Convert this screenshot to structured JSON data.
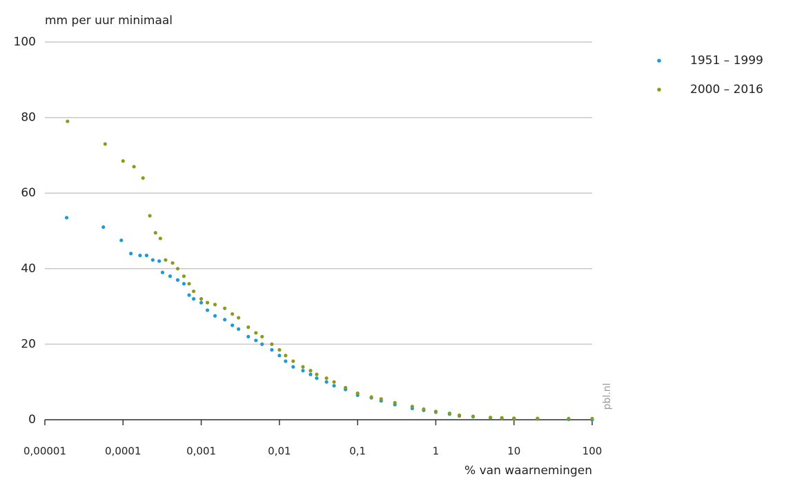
{
  "chart_data": {
    "type": "scatter",
    "y_label": "mm per uur minimaal",
    "x_label": "% van waarnemingen",
    "watermark": "pbl.nl",
    "log_x": true,
    "grid": true,
    "legend": "top-right",
    "xlim": [
      1e-05,
      100
    ],
    "ylim": [
      0,
      100
    ],
    "xticks": [
      {
        "value": 1e-05,
        "label": "0,00001"
      },
      {
        "value": 0.0001,
        "label": "0,0001"
      },
      {
        "value": 0.001,
        "label": "0,001"
      },
      {
        "value": 0.01,
        "label": "0,01"
      },
      {
        "value": 0.1,
        "label": "0,1"
      },
      1,
      10,
      100
    ],
    "yticks": [
      0,
      20,
      40,
      60,
      80,
      100
    ],
    "series": [
      {
        "name": "1951 – 1999",
        "color": "#1a9ad6",
        "x": [
          1.9e-05,
          5.6e-05,
          9.5e-05,
          0.000126,
          0.000165,
          0.0002,
          0.00024,
          0.00029,
          0.00032,
          0.0004,
          0.0005,
          0.0006,
          0.0007,
          0.0008,
          0.001,
          0.0012,
          0.0015,
          0.002,
          0.0025,
          0.003,
          0.004,
          0.005,
          0.006,
          0.008,
          0.01,
          0.012,
          0.015,
          0.02,
          0.025,
          0.03,
          0.04,
          0.05,
          0.07,
          0.1,
          0.15,
          0.2,
          0.3,
          0.5,
          0.7,
          1,
          1.5,
          2,
          3,
          5,
          7,
          10,
          20,
          50,
          100
        ],
        "values": [
          53.5,
          51,
          47.5,
          44,
          43.5,
          43.5,
          42.3,
          42,
          39,
          38,
          37,
          36,
          33,
          32,
          31,
          29,
          27.5,
          26.5,
          25,
          24,
          22,
          21,
          20,
          18.5,
          17,
          15.5,
          14,
          13,
          12,
          11,
          10,
          9,
          8,
          6.5,
          5.8,
          5,
          4,
          3,
          2.5,
          2,
          1.5,
          1,
          0.8,
          0.5,
          0.4,
          0.3,
          0.2,
          0.1,
          0
        ]
      },
      {
        "name": "2000 – 2016",
        "color": "#8c9a1a",
        "x": [
          1.95e-05,
          5.9e-05,
          0.0001,
          0.000138,
          0.00018,
          0.00022,
          0.00026,
          0.0003,
          0.00035,
          0.00043,
          0.0005,
          0.0006,
          0.0007,
          0.0008,
          0.001,
          0.0012,
          0.0015,
          0.002,
          0.0025,
          0.003,
          0.004,
          0.005,
          0.006,
          0.008,
          0.01,
          0.012,
          0.015,
          0.02,
          0.025,
          0.03,
          0.04,
          0.05,
          0.07,
          0.1,
          0.15,
          0.2,
          0.3,
          0.5,
          0.7,
          1,
          1.5,
          2,
          3,
          5,
          7,
          10,
          20,
          50,
          100
        ],
        "values": [
          79,
          73,
          68.5,
          67,
          64,
          54,
          49.5,
          48,
          42.3,
          41.5,
          40,
          38,
          36,
          34,
          32,
          31,
          30.5,
          29.5,
          28,
          27,
          24.5,
          23,
          22,
          20,
          18.5,
          17,
          15.5,
          14,
          13,
          12,
          11,
          10,
          8.5,
          7,
          6,
          5.5,
          4.5,
          3.5,
          2.8,
          2.2,
          1.7,
          1.2,
          0.9,
          0.6,
          0.5,
          0.4,
          0.35,
          0.3,
          0.3
        ]
      }
    ]
  }
}
